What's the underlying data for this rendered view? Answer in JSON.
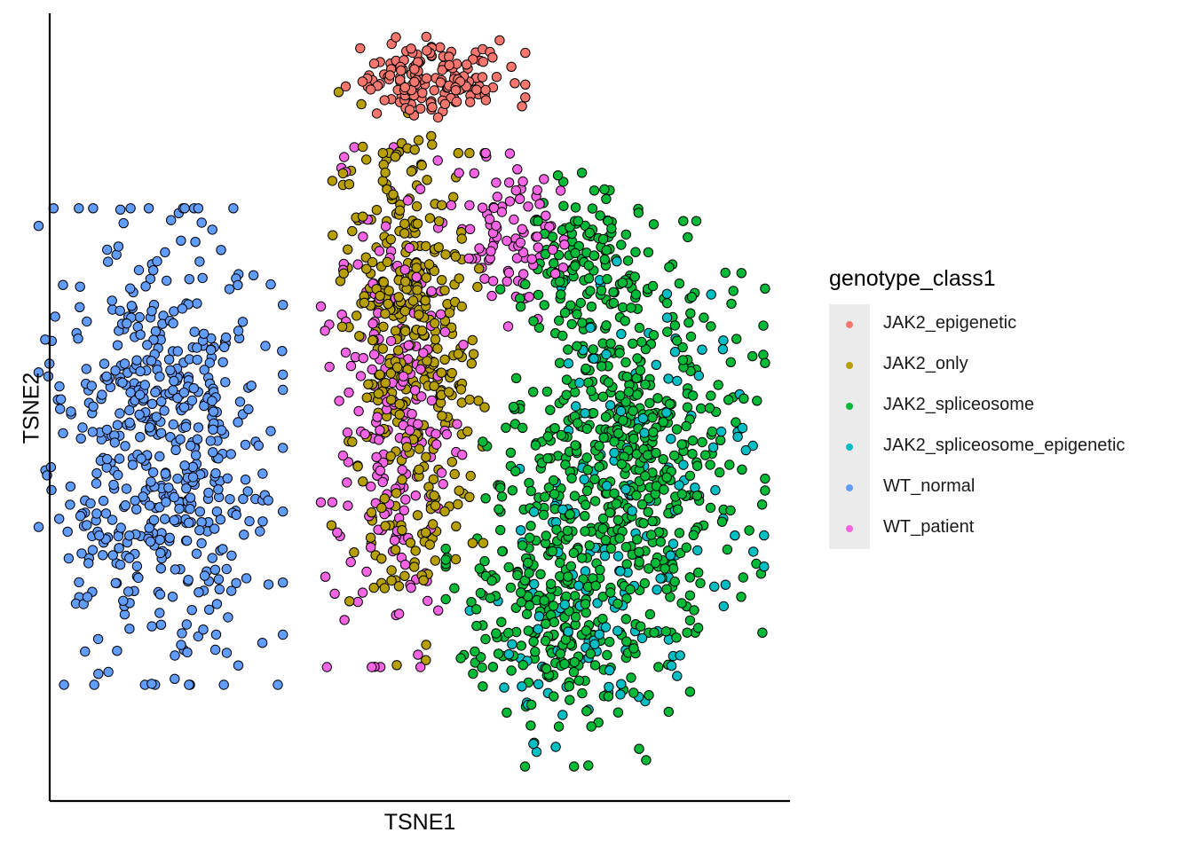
{
  "chart_data": {
    "type": "scatter",
    "xlabel": "TSNE1",
    "ylabel": "TSNE2",
    "xlim": [
      -40,
      40
    ],
    "ylim": [
      -40,
      40
    ],
    "xticks_shown": false,
    "yticks_shown": false,
    "grid": false,
    "legend": {
      "title": "genotype_class1",
      "placement": "right"
    },
    "point_style": {
      "stroke": "#000000",
      "filled": true
    },
    "series": [
      {
        "name": "JAK2_epigenetic",
        "color": "#F8766D",
        "approx_count": 160,
        "regions": [
          {
            "cx": 1.5,
            "cy": 33.5,
            "sx": 4.5,
            "sy": 2.0,
            "w": 1
          }
        ]
      },
      {
        "name": "JAK2_only",
        "color": "#B79F00",
        "approx_count": 420,
        "regions": [
          {
            "cx": -2.5,
            "cy": 10,
            "sx": 3.2,
            "sy": 10,
            "w": 0.55
          },
          {
            "cx": 1.5,
            "cy": 6,
            "sx": 2.5,
            "sy": 9,
            "w": 0.3
          },
          {
            "cx": -1.5,
            "cy": -13,
            "sx": 3.0,
            "sy": 6,
            "w": 0.15
          }
        ]
      },
      {
        "name": "JAK2_spliceosome",
        "color": "#00BA38",
        "approx_count": 860,
        "regions": [
          {
            "cx": 23,
            "cy": -2,
            "sx": 6.5,
            "sy": 9.5,
            "w": 0.55
          },
          {
            "cx": 16,
            "cy": -20,
            "sx": 6.0,
            "sy": 7.5,
            "w": 0.35
          },
          {
            "cx": 18,
            "cy": 15,
            "sx": 3.0,
            "sy": 4,
            "w": 0.1
          }
        ]
      },
      {
        "name": "JAK2_spliceosome_epigenetic",
        "color": "#00BFC4",
        "approx_count": 190,
        "regions": [
          {
            "cx": 24,
            "cy": -5,
            "sx": 6,
            "sy": 9,
            "w": 0.6
          },
          {
            "cx": 17,
            "cy": -22,
            "sx": 5.5,
            "sy": 6,
            "w": 0.4
          }
        ]
      },
      {
        "name": "WT_normal",
        "color": "#619CFF",
        "approx_count": 560,
        "regions": [
          {
            "cx": -28,
            "cy": -4,
            "sx": 6,
            "sy": 11,
            "w": 1
          }
        ]
      },
      {
        "name": "WT_patient",
        "color": "#F564E3",
        "approx_count": 300,
        "regions": [
          {
            "cx": -3,
            "cy": 0,
            "sx": 3.5,
            "sy": 12,
            "w": 0.7
          },
          {
            "cx": 10,
            "cy": 17,
            "sx": 3,
            "sy": 4,
            "w": 0.3
          }
        ]
      }
    ]
  }
}
